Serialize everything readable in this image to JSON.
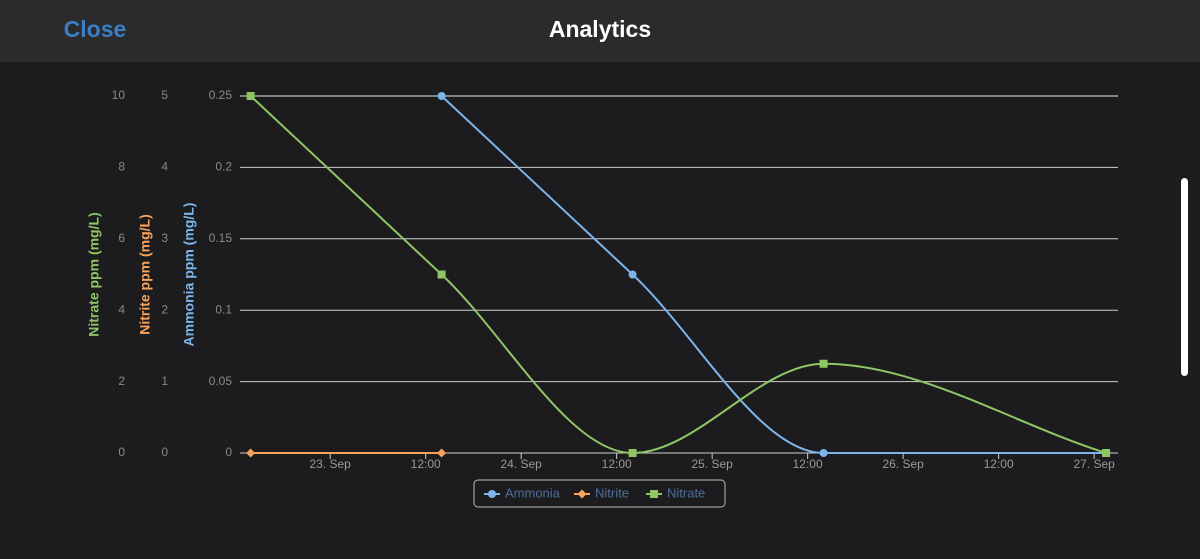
{
  "header": {
    "close": "Close",
    "title": "Analytics"
  },
  "chart_data": {
    "type": "line",
    "x": [
      "22. Sep 14:00",
      "23. Sep 14:00",
      "24. Sep 14:00",
      "25. Sep 14:00",
      "27. Sep 01:30"
    ],
    "xlim": [
      "22. Sep 12:40",
      "27. Sep 03:00"
    ],
    "xticks": [
      {
        "value": "23. Sep 00:00",
        "label": "23. Sep"
      },
      {
        "value": "23. Sep 12:00",
        "label": "12:00"
      },
      {
        "value": "24. Sep 00:00",
        "label": "24. Sep"
      },
      {
        "value": "24. Sep 12:00",
        "label": "12:00"
      },
      {
        "value": "25. Sep 00:00",
        "label": "25. Sep"
      },
      {
        "value": "25. Sep 12:00",
        "label": "12:00"
      },
      {
        "value": "26. Sep 00:00",
        "label": "26. Sep"
      },
      {
        "value": "26. Sep 12:00",
        "label": "12:00"
      },
      {
        "value": "27. Sep 00:00",
        "label": "27. Sep"
      }
    ],
    "ylabel": "Ammonia ppm (mg/L)",
    "ylim": [
      0,
      0.25
    ],
    "yticks": [
      0,
      0.05,
      0.1,
      0.15,
      0.2,
      0.25
    ],
    "y2label": "Nitrite ppm (mg/L)",
    "y2lim": [
      0,
      5
    ],
    "y2ticks": [
      0,
      1,
      2,
      3,
      4,
      5
    ],
    "y3label": "Nitrate ppm (mg/L)",
    "y3lim": [
      0,
      10
    ],
    "y3ticks": [
      0,
      2,
      4,
      6,
      8,
      10
    ],
    "grid": true,
    "legend": "bottom",
    "series": [
      {
        "name": "Ammonia",
        "color": "#7cb5ec",
        "axis": "y",
        "marker": "circle",
        "values": [
          null,
          0.25,
          0.125,
          0,
          0
        ]
      },
      {
        "name": "Nitrite",
        "color": "#f7a35c",
        "axis": "y2",
        "marker": "diamond",
        "values": [
          0,
          0,
          null,
          null,
          null
        ]
      },
      {
        "name": "Nitrate",
        "color": "#90c564",
        "axis": "y3",
        "marker": "square",
        "values": [
          10,
          5,
          0,
          2.5,
          0
        ]
      }
    ]
  }
}
